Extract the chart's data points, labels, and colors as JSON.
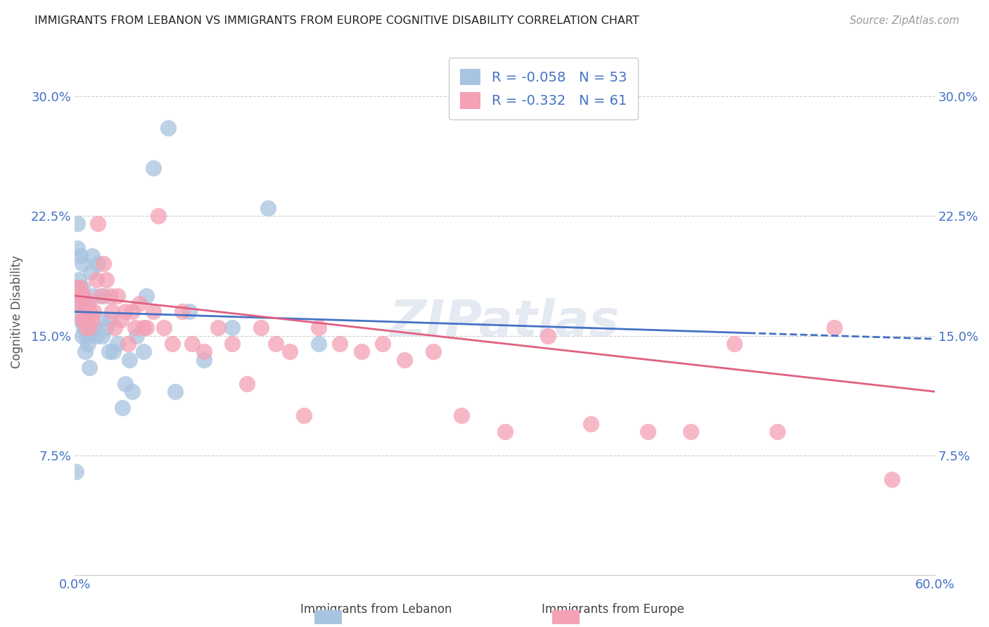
{
  "title": "IMMIGRANTS FROM LEBANON VS IMMIGRANTS FROM EUROPE COGNITIVE DISABILITY CORRELATION CHART",
  "source": "Source: ZipAtlas.com",
  "ylabel": "Cognitive Disability",
  "xlim": [
    0,
    0.6
  ],
  "ylim": [
    0,
    0.33
  ],
  "yticks": [
    0.075,
    0.15,
    0.225,
    0.3
  ],
  "ytick_labels": [
    "7.5%",
    "15.0%",
    "22.5%",
    "30.0%"
  ],
  "xticks": [
    0.0,
    0.1,
    0.2,
    0.3,
    0.4,
    0.5,
    0.6
  ],
  "xtick_labels": [
    "0.0%",
    "",
    "",
    "",
    "",
    "",
    "60.0%"
  ],
  "legend_label1": "Immigrants from Lebanon",
  "legend_label2": "Immigrants from Europe",
  "R1": -0.058,
  "N1": 53,
  "R2": -0.332,
  "N2": 61,
  "color1": "#a8c4e0",
  "color2": "#f4a0b5",
  "line_color1": "#4472c4",
  "line_color2": "#e06080",
  "axis_color": "#4472c4",
  "background_color": "#ffffff",
  "watermark": "ZIPatlas",
  "blue_x": [
    0.001,
    0.002,
    0.002,
    0.003,
    0.003,
    0.004,
    0.004,
    0.004,
    0.005,
    0.005,
    0.005,
    0.005,
    0.006,
    0.006,
    0.006,
    0.007,
    0.007,
    0.007,
    0.008,
    0.008,
    0.009,
    0.009,
    0.01,
    0.01,
    0.011,
    0.012,
    0.013,
    0.014,
    0.015,
    0.016,
    0.018,
    0.019,
    0.02,
    0.022,
    0.024,
    0.025,
    0.027,
    0.03,
    0.033,
    0.035,
    0.038,
    0.04,
    0.043,
    0.048,
    0.05,
    0.055,
    0.065,
    0.07,
    0.08,
    0.09,
    0.11,
    0.135,
    0.17
  ],
  "blue_y": [
    0.065,
    0.205,
    0.22,
    0.17,
    0.185,
    0.16,
    0.175,
    0.2,
    0.15,
    0.165,
    0.18,
    0.195,
    0.155,
    0.16,
    0.17,
    0.14,
    0.155,
    0.165,
    0.15,
    0.16,
    0.145,
    0.155,
    0.13,
    0.155,
    0.19,
    0.2,
    0.175,
    0.155,
    0.15,
    0.195,
    0.16,
    0.15,
    0.175,
    0.155,
    0.14,
    0.16,
    0.14,
    0.145,
    0.105,
    0.12,
    0.135,
    0.115,
    0.15,
    0.14,
    0.175,
    0.255,
    0.28,
    0.115,
    0.165,
    0.135,
    0.155,
    0.23,
    0.145
  ],
  "pink_x": [
    0.002,
    0.003,
    0.004,
    0.005,
    0.005,
    0.006,
    0.006,
    0.007,
    0.008,
    0.009,
    0.01,
    0.01,
    0.012,
    0.013,
    0.015,
    0.016,
    0.018,
    0.02,
    0.022,
    0.025,
    0.026,
    0.028,
    0.03,
    0.032,
    0.035,
    0.037,
    0.04,
    0.042,
    0.045,
    0.048,
    0.05,
    0.055,
    0.058,
    0.062,
    0.068,
    0.075,
    0.082,
    0.09,
    0.1,
    0.11,
    0.12,
    0.13,
    0.14,
    0.15,
    0.16,
    0.17,
    0.185,
    0.2,
    0.215,
    0.23,
    0.25,
    0.27,
    0.3,
    0.33,
    0.36,
    0.4,
    0.43,
    0.46,
    0.49,
    0.53,
    0.57
  ],
  "pink_y": [
    0.18,
    0.17,
    0.18,
    0.16,
    0.175,
    0.175,
    0.165,
    0.16,
    0.155,
    0.17,
    0.155,
    0.165,
    0.16,
    0.165,
    0.185,
    0.22,
    0.175,
    0.195,
    0.185,
    0.175,
    0.165,
    0.155,
    0.175,
    0.16,
    0.165,
    0.145,
    0.165,
    0.155,
    0.17,
    0.155,
    0.155,
    0.165,
    0.225,
    0.155,
    0.145,
    0.165,
    0.145,
    0.14,
    0.155,
    0.145,
    0.12,
    0.155,
    0.145,
    0.14,
    0.1,
    0.155,
    0.145,
    0.14,
    0.145,
    0.135,
    0.14,
    0.1,
    0.09,
    0.15,
    0.095,
    0.09,
    0.09,
    0.145,
    0.09,
    0.155,
    0.06
  ]
}
